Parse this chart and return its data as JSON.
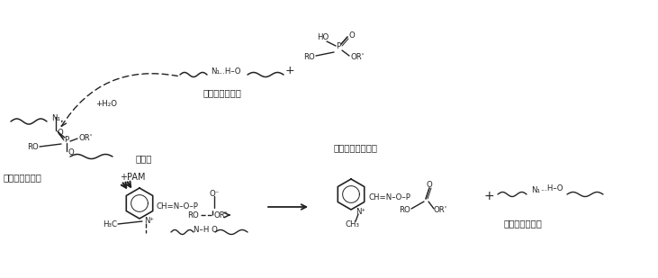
{
  "bg": "#ffffff",
  "lc": "#222222",
  "figsize": [
    7.31,
    3.09
  ],
  "dpi": 100,
  "fs": 7.0,
  "fsm": 6.2,
  "labels": {
    "phospho_che": "磷酰化胆碱酯酶",
    "revived_top": "复活的胆碱酯酶",
    "complex": "复合物",
    "pam_phospho": "磷酰化碳解磷碳定",
    "revived_bot": "复活的胆碱酯酶"
  }
}
